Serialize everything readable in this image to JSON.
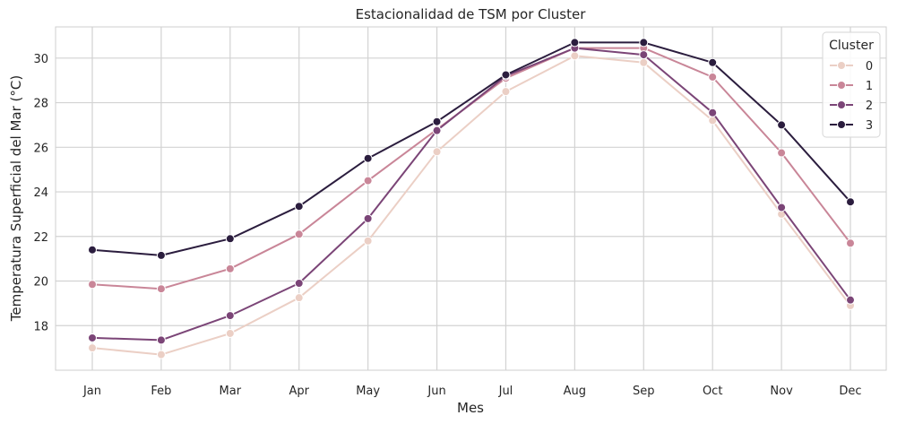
{
  "chart_data": {
    "type": "line",
    "title": "Estacionalidad de TSM por Cluster",
    "xlabel": "Mes",
    "ylabel": "Temperatura Superficial del Mar (°C)",
    "categories": [
      "Jan",
      "Feb",
      "Mar",
      "Apr",
      "May",
      "Jun",
      "Jul",
      "Aug",
      "Sep",
      "Oct",
      "Nov",
      "Dec"
    ],
    "ylim": [
      16.0,
      31.4
    ],
    "yticks": [
      18,
      20,
      22,
      24,
      26,
      28,
      30
    ],
    "grid": true,
    "legend": {
      "title": "Cluster",
      "placement": "top-right"
    },
    "series": [
      {
        "name": "0",
        "color": "#ebcfc5",
        "values": [
          17.0,
          16.7,
          17.65,
          19.25,
          21.8,
          25.8,
          28.5,
          30.1,
          29.8,
          27.2,
          23.0,
          18.9
        ]
      },
      {
        "name": "1",
        "color": "#c98698",
        "values": [
          19.85,
          19.65,
          20.55,
          22.1,
          24.5,
          26.8,
          29.1,
          30.45,
          30.45,
          29.15,
          25.75,
          21.7
        ]
      },
      {
        "name": "2",
        "color": "#7b4577",
        "values": [
          17.45,
          17.35,
          18.45,
          19.9,
          22.8,
          26.75,
          29.2,
          30.45,
          30.15,
          27.55,
          23.3,
          19.15
        ]
      },
      {
        "name": "3",
        "color": "#2b1d3e",
        "values": [
          21.4,
          21.15,
          21.9,
          23.35,
          25.5,
          27.15,
          29.25,
          30.7,
          30.7,
          29.8,
          27.0,
          23.55
        ]
      }
    ]
  }
}
